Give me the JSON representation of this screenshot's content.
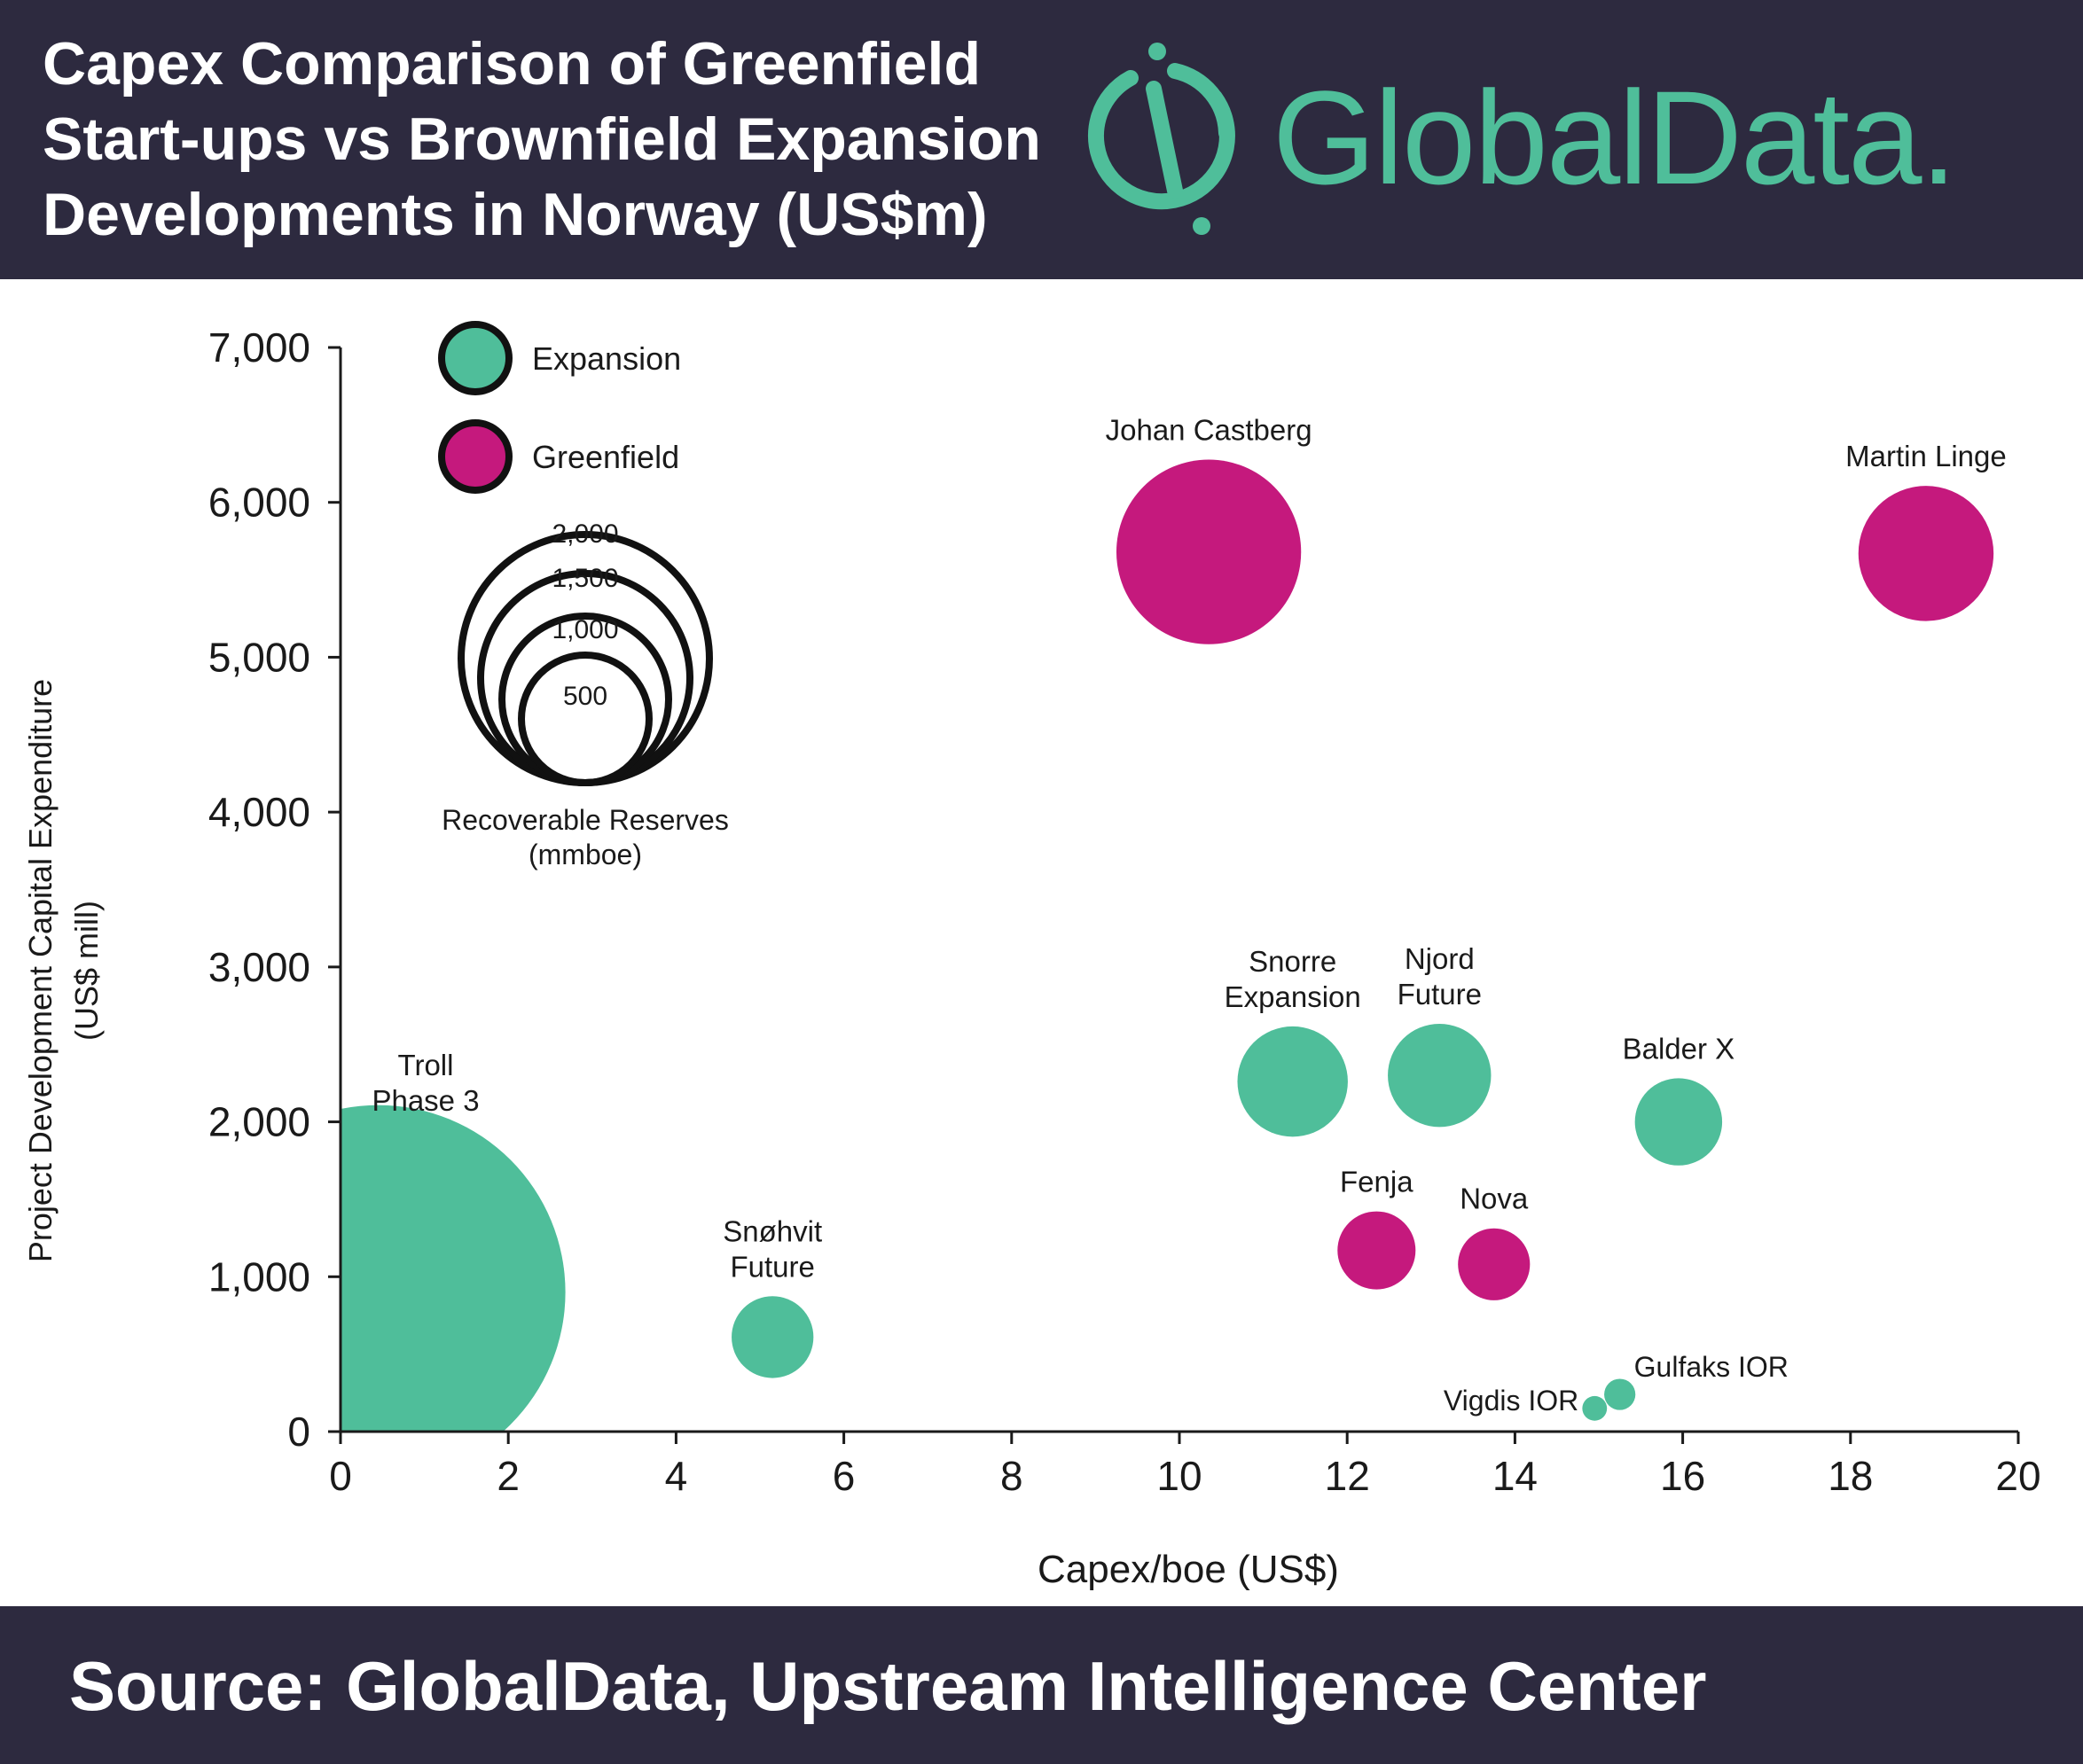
{
  "header": {
    "title_lines": [
      "Capex Comparison of Greenfield",
      "Start-ups vs Brownfield Expansion",
      "Developments in Norway (US$m)"
    ],
    "logo_text": "GlobalData."
  },
  "footer": {
    "source": "Source: GlobalData, Upstream Intelligence Center"
  },
  "colors": {
    "expansion": "#4fbe9a",
    "greenfield": "#c5197d",
    "header_bg": "#2d2a3f",
    "logo": "#4fbe9a"
  },
  "chart_data": {
    "type": "bubble",
    "xlabel": "Capex/boe (US$)",
    "ylabel": [
      "Project Development Capital Expenditure",
      "(US$ mill)"
    ],
    "xlim": [
      0,
      20
    ],
    "ylim": [
      0,
      7000
    ],
    "xticks": [
      "0",
      "2",
      "4",
      "6",
      "8",
      "10",
      "12",
      "14",
      "16",
      "18",
      "20"
    ],
    "yticks": [
      "0",
      "1,000",
      "2,000",
      "3,000",
      "4,000",
      "5,000",
      "6,000",
      "7,000"
    ],
    "legend": {
      "position": "top-left",
      "items": [
        {
          "label": "Expansion",
          "key": "expansion"
        },
        {
          "label": "Greenfield",
          "key": "greenfield"
        }
      ]
    },
    "size_legend": {
      "title": [
        "Recoverable Reserves",
        "(mmboe)"
      ],
      "values": [
        "2,000",
        "1,500",
        "1,000",
        "500"
      ]
    },
    "series": [
      {
        "name": "Expansion",
        "key": "expansion",
        "points": [
          {
            "label": [
              "Troll",
              "Phase 3"
            ],
            "x": 0.45,
            "y": 900,
            "reserves": 2300
          },
          {
            "label": [
              "Snøhvit",
              "Future"
            ],
            "x": 5.15,
            "y": 610,
            "reserves": 110
          },
          {
            "label": [
              "Snorre",
              "Expansion"
            ],
            "x": 11.35,
            "y": 2260,
            "reserves": 200
          },
          {
            "label": [
              "Njord",
              "Future"
            ],
            "x": 13.1,
            "y": 2300,
            "reserves": 175
          },
          {
            "label": [
              "Balder X"
            ],
            "x": 15.95,
            "y": 2000,
            "reserves": 125
          },
          {
            "label": [
              "Gulfaks IOR"
            ],
            "x": 15.25,
            "y": 240,
            "reserves": 16
          },
          {
            "label": [
              "Vigdis IOR"
            ],
            "x": 14.95,
            "y": 150,
            "reserves": 10
          }
        ]
      },
      {
        "name": "Greenfield",
        "key": "greenfield",
        "points": [
          {
            "label": [
              "Johan Castberg"
            ],
            "x": 10.35,
            "y": 5680,
            "reserves": 560
          },
          {
            "label": [
              "Martin Linge"
            ],
            "x": 18.9,
            "y": 5670,
            "reserves": 300
          },
          {
            "label": [
              "Fenja"
            ],
            "x": 12.35,
            "y": 1170,
            "reserves": 100
          },
          {
            "label": [
              "Nova"
            ],
            "x": 13.75,
            "y": 1080,
            "reserves": 85
          }
        ]
      }
    ]
  }
}
